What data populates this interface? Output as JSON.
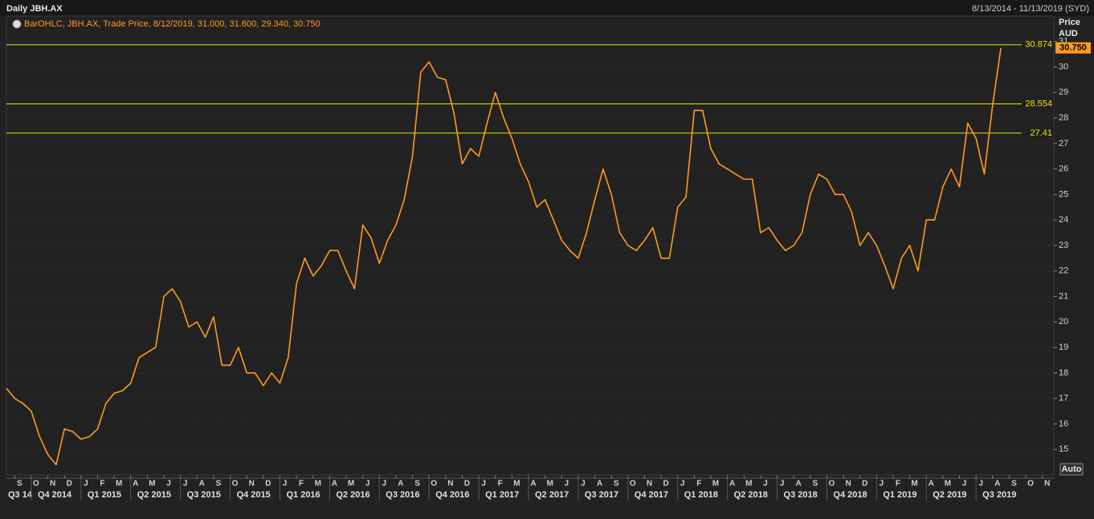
{
  "chart_data": {
    "type": "line",
    "title": "Daily JBH.AX",
    "date_range": "8/13/2014 - 11/13/2019 (SYD)",
    "y_label": [
      "Price",
      "AUD"
    ],
    "categories": [
      null,
      "S",
      null,
      "O",
      null,
      "N",
      null,
      "D",
      null,
      "J",
      null,
      "F",
      null,
      "M",
      null,
      "A",
      null,
      "M",
      null,
      "J",
      null,
      "J",
      null,
      "A",
      null,
      "S",
      null,
      "O",
      null,
      "N",
      null,
      "D",
      null,
      "J",
      null,
      "F",
      null,
      "M",
      null,
      "A",
      null,
      "M",
      null,
      "J",
      null,
      "J",
      null,
      "A",
      null,
      "S",
      null,
      "O",
      null,
      "N",
      null,
      "D",
      null,
      "J",
      null,
      "F",
      null,
      "M",
      null,
      "A",
      null,
      "M",
      null,
      "J",
      null,
      "J",
      null,
      "A",
      null,
      "S",
      null,
      "O",
      null,
      "N",
      null,
      "D",
      null,
      "J",
      null,
      "F",
      null,
      "M",
      null,
      "A",
      null,
      "M",
      null,
      "J",
      null,
      "J",
      null,
      "A",
      null,
      "S",
      null,
      "O",
      null,
      "N",
      null,
      "D",
      null,
      "J",
      null,
      "F",
      null,
      "M",
      null,
      "A",
      null,
      "M",
      null,
      "J",
      null,
      "J",
      null,
      "A",
      null,
      "S",
      null,
      "O",
      null,
      "N",
      null
    ],
    "quarters": [
      "Q3 14",
      "Q4 2014",
      "Q1 2015",
      "Q2 2015",
      "Q3 2015",
      "Q4 2015",
      "Q1 2016",
      "Q2 2016",
      "Q3 2016",
      "Q4 2016",
      "Q1 2017",
      "Q2 2017",
      "Q3 2017",
      "Q4 2017",
      "Q1 2018",
      "Q2 2018",
      "Q3 2018",
      "Q4 2018",
      "Q1 2019",
      "Q2 2019",
      "Q3 2019"
    ],
    "series": [
      {
        "name": "BarOHLC, JBH.AX, Trade Price, 8/12/2019, 31.000, 31.600, 29.340, 30.750",
        "color": "#ff9a1f",
        "values": [
          17.4,
          17.0,
          16.8,
          16.5,
          15.5,
          14.8,
          14.4,
          15.8,
          15.7,
          15.4,
          15.5,
          15.8,
          16.8,
          17.2,
          17.3,
          17.6,
          18.6,
          18.8,
          19.0,
          21.0,
          21.3,
          20.8,
          19.8,
          20.0,
          19.4,
          20.2,
          18.3,
          18.3,
          19.0,
          18.0,
          18.0,
          17.5,
          18.0,
          17.6,
          18.6,
          21.5,
          22.5,
          21.8,
          22.2,
          22.8,
          22.8,
          22.0,
          21.3,
          23.8,
          23.3,
          22.3,
          23.2,
          23.8,
          24.8,
          26.5,
          29.8,
          30.2,
          29.6,
          29.5,
          28.2,
          26.2,
          26.8,
          26.5,
          27.8,
          29.0,
          28.0,
          27.2,
          26.2,
          25.5,
          24.5,
          24.8,
          24.0,
          23.2,
          22.8,
          22.5,
          23.5,
          24.8,
          26.0,
          25.0,
          23.5,
          23.0,
          22.8,
          23.2,
          23.7,
          22.5,
          22.5,
          24.5,
          24.9,
          28.3,
          28.3,
          26.8,
          26.2,
          26.0,
          25.8,
          25.6,
          25.6,
          23.5,
          23.7,
          23.2,
          22.8,
          23.0,
          23.5,
          25.0,
          25.8,
          25.6,
          25.0,
          25.0,
          24.3,
          23.0,
          23.5,
          23.0,
          22.2,
          21.3,
          22.5,
          23.0,
          22.0,
          24.0,
          24.0,
          25.3,
          26.0,
          25.3,
          27.8,
          27.2,
          25.8,
          28.5,
          30.75,
          null,
          null,
          null,
          null,
          null,
          null
        ]
      }
    ],
    "ylim": [
      14,
      32
    ],
    "yticks": [
      15,
      16,
      17,
      18,
      19,
      20,
      21,
      22,
      23,
      24,
      25,
      26,
      27,
      28,
      29,
      30,
      31
    ],
    "hlines": [
      30.874,
      28.554,
      27.41
    ],
    "hline_color": "#e6e600",
    "last_price": {
      "value": 30.75,
      "label": "30.750"
    },
    "grid": true,
    "button": "Auto"
  }
}
